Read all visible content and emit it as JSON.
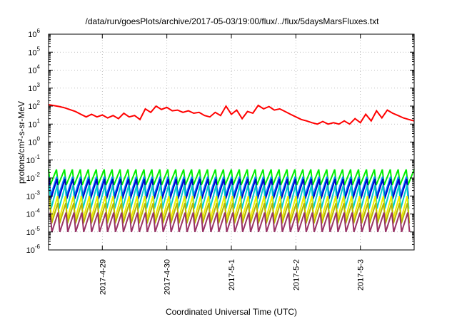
{
  "chart_data": {
    "type": "line",
    "title": "/data/run/goesPlots/archive/2017-05-03/19:00/flux/../flux/5daysMarsFluxes.txt",
    "xlabel": "Coordinated Universal Time (UTC)",
    "ylabel": "protons/cm²-s-sr-MeV",
    "xlim": [
      "2017-04-28T04:00",
      "2017-05-03T20:00"
    ],
    "ylim": [
      1e-06,
      1000000.0
    ],
    "yscale": "log",
    "grid": true,
    "legend": "none",
    "x_ticks": [
      "2017-4-29",
      "2017-4-30",
      "2017-5-1",
      "2017-5-2",
      "2017-5-3"
    ],
    "y_ticks": [
      {
        "value": 1e-06,
        "base": "10",
        "exp": "-6"
      },
      {
        "value": 1e-05,
        "base": "10",
        "exp": "-5"
      },
      {
        "value": 0.0001,
        "base": "10",
        "exp": "-4"
      },
      {
        "value": 0.001,
        "base": "10",
        "exp": "-3"
      },
      {
        "value": 0.01,
        "base": "10",
        "exp": "-2"
      },
      {
        "value": 0.1,
        "base": "10",
        "exp": "-1"
      },
      {
        "value": 1,
        "base": "10",
        "exp": "0"
      },
      {
        "value": 10,
        "base": "10",
        "exp": "1"
      },
      {
        "value": 100,
        "base": "10",
        "exp": "2"
      },
      {
        "value": 1000,
        "base": "10",
        "exp": "3"
      },
      {
        "value": 10000,
        "base": "10",
        "exp": "4"
      },
      {
        "value": 100000,
        "base": "10",
        "exp": "5"
      },
      {
        "value": 1000000,
        "base": "10",
        "exp": "6"
      }
    ],
    "series": [
      {
        "color": "#ff0000",
        "x": [
          "2017-04-28T04:00",
          "2017-04-28T08:00",
          "2017-04-28T10:00",
          "2017-04-28T14:00",
          "2017-04-28T16:00",
          "2017-04-28T18:00",
          "2017-04-28T20:00",
          "2017-04-28T22:00",
          "2017-04-29T00:00",
          "2017-04-29T02:00",
          "2017-04-29T04:00",
          "2017-04-29T06:00",
          "2017-04-29T08:00",
          "2017-04-29T10:00",
          "2017-04-29T12:00",
          "2017-04-29T14:00",
          "2017-04-29T16:00",
          "2017-04-29T18:00",
          "2017-04-29T20:00",
          "2017-04-29T22:00",
          "2017-04-30T00:00",
          "2017-04-30T02:00",
          "2017-04-30T04:00",
          "2017-04-30T06:00",
          "2017-04-30T08:00",
          "2017-04-30T10:00",
          "2017-04-30T12:00",
          "2017-04-30T14:00",
          "2017-04-30T16:00",
          "2017-04-30T18:00",
          "2017-04-30T20:00",
          "2017-04-30T22:00",
          "2017-05-01T00:00",
          "2017-05-01T02:00",
          "2017-05-01T04:00",
          "2017-05-01T06:00",
          "2017-05-01T08:00",
          "2017-05-01T10:00",
          "2017-05-01T12:00",
          "2017-05-01T14:00",
          "2017-05-01T16:00",
          "2017-05-01T18:00",
          "2017-05-01T20:00",
          "2017-05-01T22:00",
          "2017-05-02T00:00",
          "2017-05-02T02:00",
          "2017-05-02T04:00",
          "2017-05-02T06:00",
          "2017-05-02T08:00",
          "2017-05-02T10:00",
          "2017-05-02T12:00",
          "2017-05-02T14:00",
          "2017-05-02T16:00",
          "2017-05-02T18:00",
          "2017-05-02T20:00",
          "2017-05-02T22:00",
          "2017-05-03T00:00",
          "2017-05-03T02:00",
          "2017-05-03T04:00",
          "2017-05-03T06:00",
          "2017-05-03T08:00",
          "2017-05-03T10:00",
          "2017-05-03T12:00",
          "2017-05-03T14:00",
          "2017-05-03T16:00",
          "2017-05-03T18:00",
          "2017-05-03T20:00"
        ],
        "values": [
          120,
          95,
          80,
          50,
          35,
          25,
          35,
          25,
          32,
          22,
          30,
          20,
          40,
          25,
          30,
          18,
          70,
          45,
          100,
          65,
          85,
          55,
          60,
          45,
          55,
          40,
          45,
          30,
          25,
          45,
          30,
          100,
          35,
          60,
          20,
          50,
          40,
          110,
          70,
          95,
          60,
          70,
          50,
          35,
          25,
          18,
          15,
          12,
          10,
          14,
          10,
          12,
          10,
          15,
          10,
          20,
          12,
          35,
          15,
          55,
          22,
          60,
          40,
          30,
          22,
          18,
          15
        ]
      }
    ],
    "bands": [
      {
        "color": "#00ee00",
        "low": 0.004,
        "high": 0.03
      },
      {
        "color": "#0088ff",
        "low": 0.001,
        "high": 0.012
      },
      {
        "color": "#0000cc",
        "low": 0.0007,
        "high": 0.009
      },
      {
        "color": "#00cccc",
        "low": 0.0002,
        "high": 0.004
      },
      {
        "color": "#eeee00",
        "low": 5e-05,
        "high": 0.001
      },
      {
        "color": "#b5b500",
        "low": 3e-05,
        "high": 0.0004
      },
      {
        "color": "#993366",
        "low": 1e-05,
        "high": 0.00012
      }
    ]
  }
}
